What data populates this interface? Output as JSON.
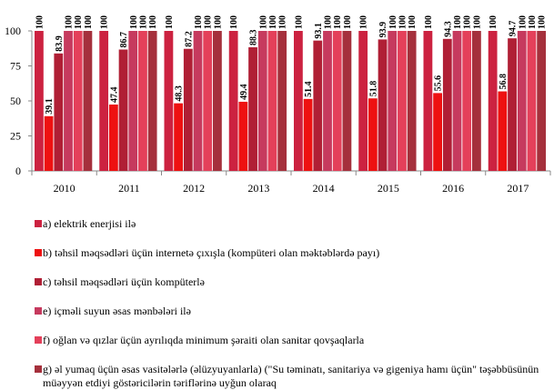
{
  "chart_data": {
    "type": "bar",
    "categories": [
      "2010",
      "2011",
      "2012",
      "2013",
      "2014",
      "2015",
      "2016",
      "2017"
    ],
    "ylim": [
      0,
      100
    ],
    "y_ticks": [
      "0",
      "25",
      "50",
      "75",
      "100"
    ],
    "grid": false,
    "legend_position": "bottom",
    "series": [
      {
        "name": "a) elektrik  enerjisi ilə",
        "color": "#cc2240",
        "values": [
          100,
          100,
          100,
          100,
          100,
          100,
          100,
          100
        ],
        "labels": [
          "100",
          "100",
          "100",
          "100",
          "100",
          "100",
          "100",
          "100"
        ]
      },
      {
        "name": "b) təhsil məqsədləri üçün internetə çıxışla  (kompüteri  olan məktəblərdə  payı)",
        "color": "#ee1111",
        "values": [
          39.1,
          47.4,
          48.3,
          49.4,
          51.4,
          51.8,
          55.6,
          56.8
        ],
        "labels": [
          "39.1",
          "47.4",
          "48.3",
          "49.4",
          "51.4",
          "51.8",
          "55.6",
          "56.8"
        ]
      },
      {
        "name": "c) təhsil məqsədləri üçün kompüterlə",
        "color": "#b01f35",
        "values": [
          83.9,
          86.7,
          87.2,
          88.3,
          93.1,
          93.9,
          94.3,
          94.7
        ],
        "labels": [
          "83.9",
          "86.7",
          "87.2",
          "88.3",
          "93.1",
          "93.9",
          "94.3",
          "94.7"
        ]
      },
      {
        "name": "e) içməli  suyun əsas mənbələri  ilə",
        "color": "#c63a5e",
        "values": [
          100,
          100,
          100,
          100,
          100,
          100,
          100,
          100
        ],
        "labels": [
          "100",
          "100",
          "100",
          "100",
          "100",
          "100",
          "100",
          "100"
        ]
      },
      {
        "name": "f) oğlan və qızlar  üçün ayrılıqda  minimum   şəraiti  olan sanitar qovşaqlarla",
        "color": "#e4405a",
        "values": [
          100,
          100,
          100,
          100,
          100,
          100,
          100,
          100
        ],
        "labels": [
          "100",
          "100",
          "100",
          "100",
          "100",
          "100",
          "100",
          "100"
        ]
      },
      {
        "name": "g) əl yumaq üçün əsas vasitələrlə  (əlüzyuyanlarla)  (\"Su təminatı,  sanitariya  və gigeniya hamı üçün\"  təşəbbüsünün müəyyən etdiyi göstəricilərin  təriflərinə  uyğun olaraq",
        "color": "#a5303c",
        "values": [
          100,
          100,
          100,
          100,
          100,
          100,
          100,
          100
        ],
        "labels": [
          "100",
          "100",
          "100",
          "100",
          "100",
          "100",
          "100",
          "100"
        ]
      }
    ]
  }
}
